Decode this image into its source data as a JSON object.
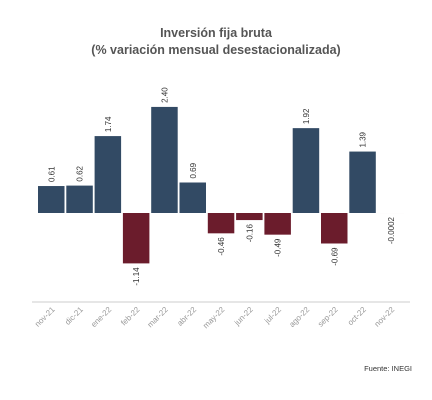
{
  "header": {
    "title": "Inversión fija bruta",
    "subtitle": "(% variación mensual desestacionalizada)"
  },
  "source": "Fuente: INEGI",
  "colors": {
    "positive": "#324a64",
    "negative": "#6b1c2c",
    "axis": "#cccccc"
  },
  "chart_data": {
    "type": "bar",
    "categories": [
      "nov-21",
      "dic-21",
      "ene-22",
      "feb-22",
      "mar-22",
      "abr-22",
      "may-22",
      "jun-22",
      "jul-22",
      "ago-22",
      "sep-22",
      "oct-22",
      "nov-22"
    ],
    "values": [
      0.61,
      0.62,
      1.74,
      -1.14,
      2.4,
      0.69,
      -0.46,
      -0.16,
      -0.49,
      1.92,
      -0.69,
      1.39,
      -0.0002
    ],
    "value_labels": [
      "0.61",
      "0.62",
      "1.74",
      "-1.14",
      "2.40",
      "0.69",
      "-0.46",
      "-0.16",
      "-0.49",
      "1.92",
      "-0.69",
      "1.39",
      "-0.0002"
    ],
    "title": "Inversión fija bruta",
    "subtitle": "(% variación mensual desestacionalizada)",
    "xlabel": "",
    "ylabel": "",
    "grid": false,
    "legend": "none"
  }
}
